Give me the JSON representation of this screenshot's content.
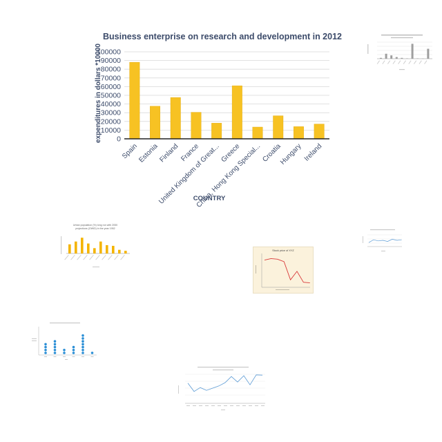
{
  "colors": {
    "bar": "#f7c223",
    "bar_edge": "#e2a90e",
    "title": "#3c4b6a",
    "axis_text": "#3c4b6a",
    "grid": "#d9d9d9",
    "thumb_line_blue": "#5b9bd5",
    "thumb_line_red": "#d93a3a",
    "thumb_dot_blue": "#2b8fd6",
    "thumb_bar_gold": "#f4b400"
  },
  "chart_data": [
    {
      "type": "bar",
      "title": "Business enterprise on research and development in 2012",
      "xlabel": "COUNTRY",
      "ylabel": "expenditures in dollars *10000",
      "categories": [
        "Spain",
        "Estonia",
        "Finland",
        "France",
        "United Kingdom of Great...",
        "Greece",
        "China, Hong Kong Special...",
        "Croatia",
        "Hungary",
        "Ireland"
      ],
      "values": [
        88000,
        37500,
        47500,
        30500,
        18000,
        61000,
        13500,
        26500,
        14000,
        17000
      ],
      "y_ticks": [
        "0",
        "10000",
        "20000",
        "30000",
        "40000",
        "50000",
        "60000",
        "70000",
        "80000",
        "90000",
        "100000"
      ],
      "ylim": [
        0,
        100000
      ],
      "grid": true
    }
  ],
  "thumbnails": {
    "urban_population": {
      "title_line1": "Urban population (%) long run with 2050",
      "title_line2": "projections (OWID) in the year 1952",
      "values": [
        0.55,
        0.72,
        0.95,
        0.6,
        0.32,
        0.72,
        0.5,
        0.46,
        0.22,
        0.16
      ]
    },
    "stock_price": {
      "title": "Stock price of XYZ",
      "values": [
        0.85,
        0.9,
        0.88,
        0.8,
        0.2,
        0.48,
        0.12,
        0.1
      ]
    },
    "top_right_bars": {
      "values": [
        0.05,
        0.3,
        0.2,
        0.1,
        0.05,
        0.02,
        0.9,
        0.02,
        0.01,
        0.6
      ]
    },
    "small_line": {
      "values": [
        0.3,
        0.55,
        0.45,
        0.5,
        0.4,
        0.6,
        0.5,
        0.55
      ]
    },
    "dot_plot": {
      "counts": [
        4,
        5,
        2,
        3,
        7,
        1
      ]
    },
    "bottom_line": {
      "values": [
        0.68,
        0.38,
        0.52,
        0.42,
        0.5,
        0.58,
        0.7,
        0.92,
        0.72,
        0.95,
        0.62,
        0.98,
        0.97
      ]
    }
  }
}
